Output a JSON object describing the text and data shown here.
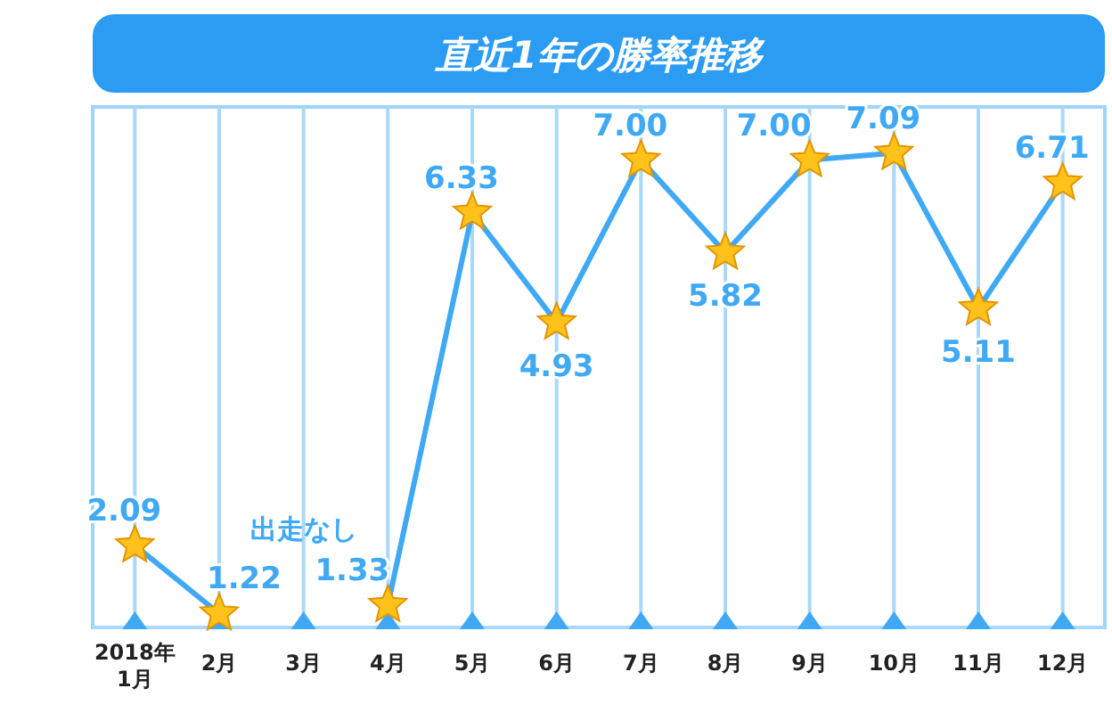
{
  "chart_data": {
    "type": "line",
    "title": "直近1年の勝率推移",
    "categories": [
      "2018年\n1月",
      "2月",
      "3月",
      "4月",
      "5月",
      "6月",
      "7月",
      "8月",
      "9月",
      "10月",
      "11月",
      "12月"
    ],
    "series": [
      {
        "color": "#3fa9f5",
        "values": [
          2.09,
          1.22,
          null,
          1.33,
          6.33,
          4.93,
          7.0,
          5.82,
          7.0,
          7.09,
          5.11,
          6.71
        ],
        "value_labels": [
          "2.09",
          "1.22",
          null,
          "1.33",
          "6.33",
          "4.93",
          "7.00",
          "5.82",
          "7.00",
          "7.09",
          "5.11",
          "6.71"
        ]
      }
    ],
    "marker": "star",
    "grid": "x",
    "annotations": [
      "出走なし"
    ]
  }
}
